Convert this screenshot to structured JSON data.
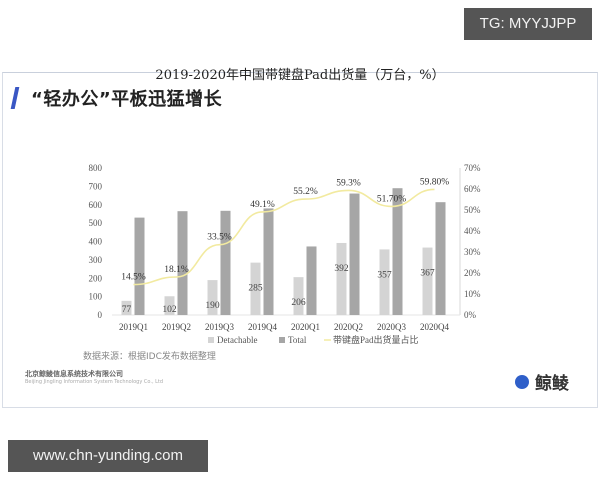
{
  "watermarks": {
    "tg": "TG: MYYJJPP",
    "url": "www.chn-yunding.com"
  },
  "slide": {
    "title": "“轻办公”平板迅猛增长",
    "source": "数据来源：根据IDC发布数据整理",
    "company_cn": "北京鲸鲮信息系统技术有限公司",
    "company_en": "Beijing Jingling Information System Technology Co., Ltd",
    "logo_text": "鲸鲮",
    "accent_color": "#3a57c4"
  },
  "chart_data": {
    "type": "bar",
    "title": "2019-2020年中国带键盘Pad出货量（万台，%）",
    "categories": [
      "2019Q1",
      "2019Q2",
      "2019Q3",
      "2019Q4",
      "2020Q1",
      "2020Q2",
      "2020Q3",
      "2020Q4"
    ],
    "series": [
      {
        "name": "Detachable",
        "type": "bar",
        "axis": "left",
        "color": "#d4d4d4",
        "values": [
          77,
          102,
          190,
          285,
          206,
          392,
          357,
          367
        ]
      },
      {
        "name": "Total",
        "type": "bar",
        "axis": "left",
        "color": "#a6a6a6",
        "values": [
          530,
          565,
          567,
          580,
          373,
          661,
          690,
          614
        ]
      },
      {
        "name": "带键盘Pad出货量占比",
        "type": "line",
        "axis": "right",
        "color": "#f2eaa0",
        "values": [
          14.5,
          18.1,
          33.5,
          49.1,
          55.2,
          59.3,
          51.7,
          59.8
        ],
        "labels": [
          "14.5%",
          "18.1%",
          "33.5%",
          "49.1%",
          "55.2%",
          "59.3%",
          "51.70%",
          "59.80%"
        ]
      }
    ],
    "ylabel": "",
    "ylim": [
      0,
      800
    ],
    "yticks": [
      "0",
      "100",
      "200",
      "300",
      "400",
      "500",
      "600",
      "700",
      "800"
    ],
    "y2lim": [
      0,
      70
    ],
    "y2ticks": [
      "0%",
      "10%",
      "20%",
      "30%",
      "40%",
      "50%",
      "60%",
      "70%"
    ],
    "legend": [
      "Detachable",
      "Total",
      "带键盘Pad出货量占比"
    ],
    "legend_position": "bottom",
    "grid": false
  }
}
